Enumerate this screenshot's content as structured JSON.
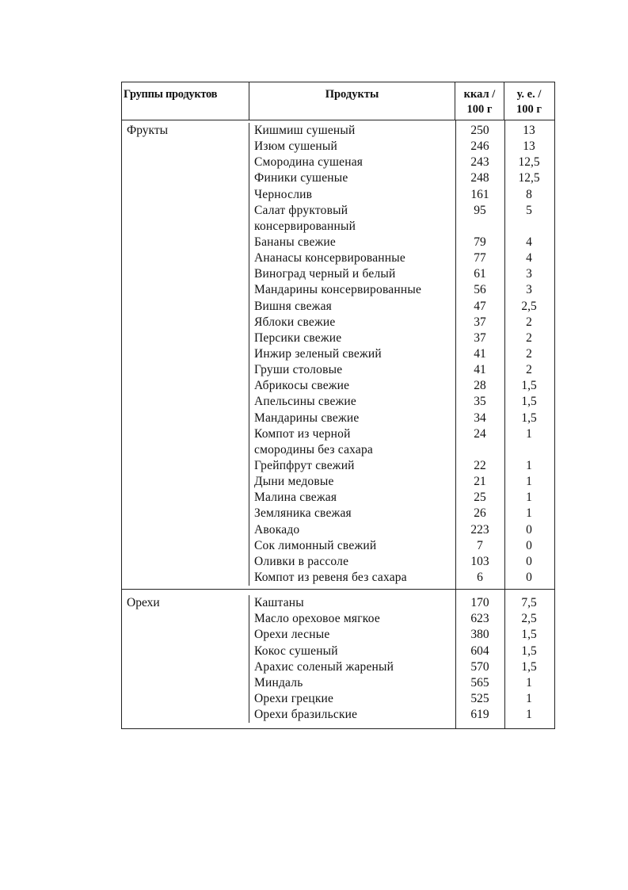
{
  "table": {
    "headers": {
      "group": "Группы продуктов",
      "product": "Продукты",
      "kcal_line1": "ккал /",
      "kcal_line2": "100 г",
      "units_line1": "у. е. /",
      "units_line2": "100 г"
    },
    "groups": [
      {
        "name": "Фрукты",
        "items": [
          {
            "product": "Кишмиш сушеный",
            "kcal": "250",
            "units": "13"
          },
          {
            "product": "Изюм сушеный",
            "kcal": "246",
            "units": "13"
          },
          {
            "product": "Смородина сушеная",
            "kcal": "243",
            "units": "12,5"
          },
          {
            "product": "Финики сушеные",
            "kcal": "248",
            "units": "12,5"
          },
          {
            "product": "Чернослив",
            "kcal": "161",
            "units": "8"
          },
          {
            "product": "Салат фруктовый консервированный",
            "kcal": "95",
            "units": "5"
          },
          {
            "product": "Бананы свежие",
            "kcal": "79",
            "units": "4"
          },
          {
            "product": "Ананасы консервированные",
            "kcal": "77",
            "units": "4"
          },
          {
            "product": "Виноград черный и белый",
            "kcal": "61",
            "units": "3"
          },
          {
            "product": "Мандарины консервированные",
            "kcal": "56",
            "units": "3"
          },
          {
            "product": "Вишня свежая",
            "kcal": "47",
            "units": "2,5"
          },
          {
            "product": "Яблоки свежие",
            "kcal": "37",
            "units": "2"
          },
          {
            "product": "Персики свежие",
            "kcal": "37",
            "units": "2"
          },
          {
            "product": "Инжир зеленый свежий",
            "kcal": "41",
            "units": "2"
          },
          {
            "product": "Груши столовые",
            "kcal": "41",
            "units": "2"
          },
          {
            "product": "Абрикосы свежие",
            "kcal": "28",
            "units": "1,5"
          },
          {
            "product": "Апельсины свежие",
            "kcal": "35",
            "units": "1,5"
          },
          {
            "product": "Мандарины свежие",
            "kcal": "34",
            "units": "1,5"
          },
          {
            "product": "Компот из черной смородины без сахара",
            "kcal": "24",
            "units": "1"
          },
          {
            "product": "Грейпфрут свежий",
            "kcal": "22",
            "units": "1"
          },
          {
            "product": "Дыни медовые",
            "kcal": "21",
            "units": "1"
          },
          {
            "product": "Малина свежая",
            "kcal": "25",
            "units": "1"
          },
          {
            "product": "Земляника свежая",
            "kcal": "26",
            "units": "1"
          },
          {
            "product": "Авокадо",
            "kcal": "223",
            "units": "0"
          },
          {
            "product": "Сок лимонный свежий",
            "kcal": "7",
            "units": "0"
          },
          {
            "product": "Оливки в рассоле",
            "kcal": "103",
            "units": "0"
          },
          {
            "product": "Компот из ревеня без сахара",
            "kcal": "6",
            "units": "0"
          }
        ]
      },
      {
        "name": "Орехи",
        "items": [
          {
            "product": "Каштаны",
            "kcal": "170",
            "units": "7,5"
          },
          {
            "product": "Масло ореховое мягкое",
            "kcal": "623",
            "units": "2,5"
          },
          {
            "product": "Орехи лесные",
            "kcal": "380",
            "units": "1,5"
          },
          {
            "product": "Кокос сушеный",
            "kcal": "604",
            "units": "1,5"
          },
          {
            "product": "Арахис соленый жареный",
            "kcal": "570",
            "units": "1,5"
          },
          {
            "product": "Миндаль",
            "kcal": "565",
            "units": "1"
          },
          {
            "product": "Орехи грецкие",
            "kcal": "525",
            "units": "1"
          },
          {
            "product": "Орехи бразильские",
            "kcal": "619",
            "units": "1"
          }
        ]
      }
    ]
  }
}
